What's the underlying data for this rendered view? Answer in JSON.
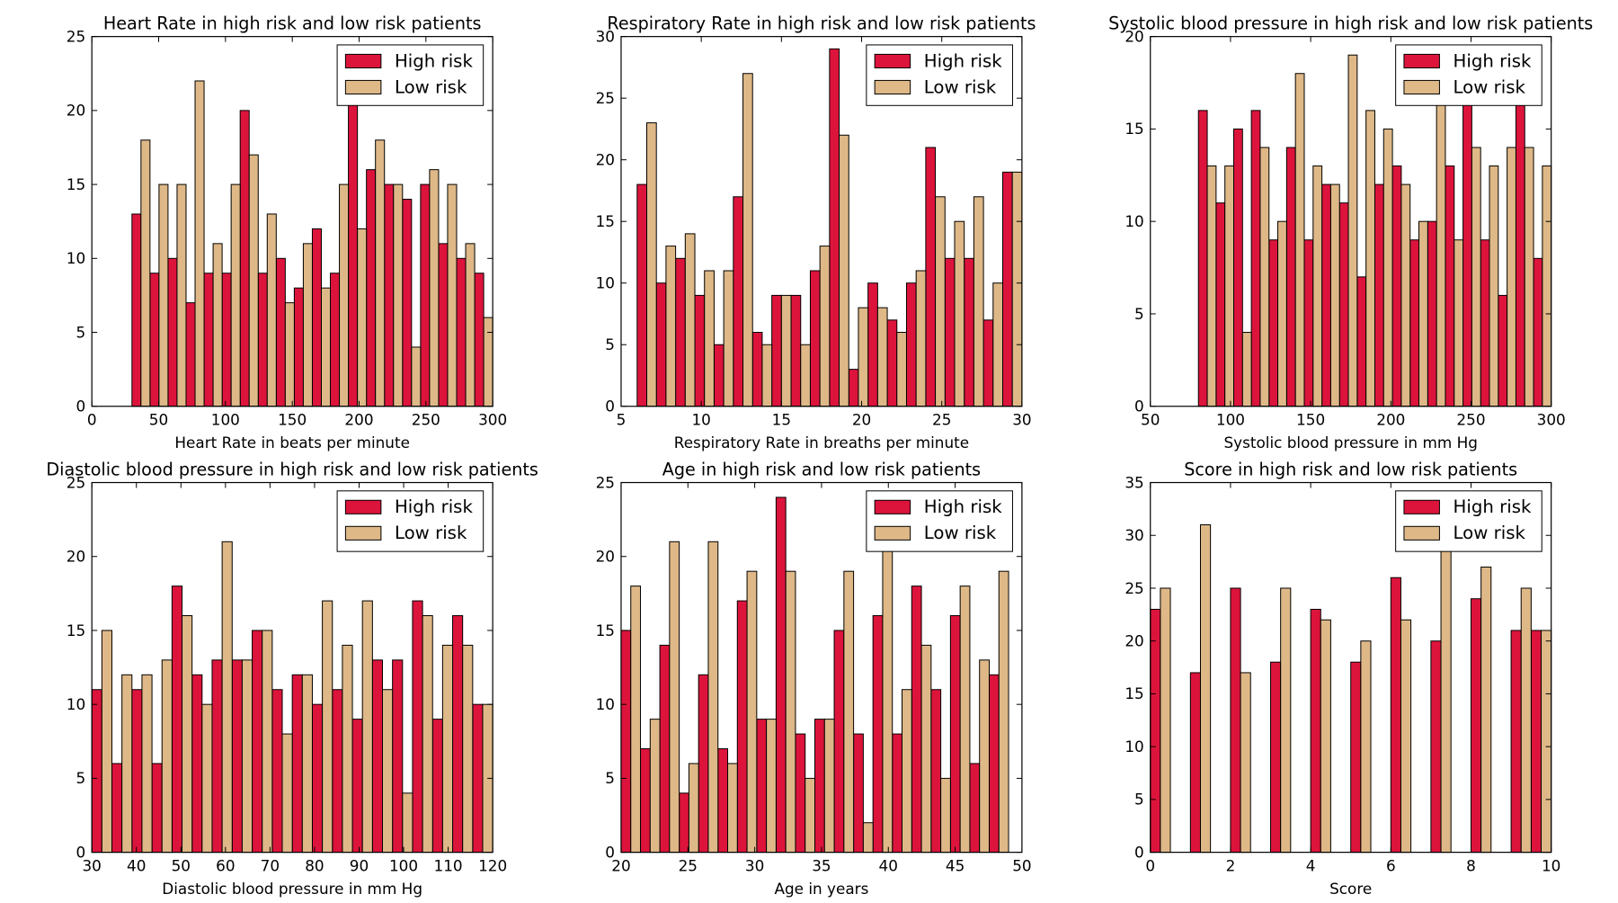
{
  "colors": {
    "high_risk": "#dc143c",
    "low_risk": "#deb887",
    "edge": "#000000"
  },
  "chart_data": [
    {
      "type": "bar",
      "title": "Heart Rate in high risk and low risk patients",
      "xlabel": "Heart Rate in beats per minute",
      "ylabel": "",
      "xlim": [
        0,
        300
      ],
      "ylim": [
        0,
        25
      ],
      "xticks": [
        "0",
        "50",
        "100",
        "150",
        "200",
        "250",
        "300"
      ],
      "yticks": [
        "0",
        "5",
        "10",
        "15",
        "20",
        "25"
      ],
      "bin_start": 30,
      "bin_width": 13.5,
      "legend": "top-right",
      "series": [
        {
          "name": "High risk",
          "values": [
            13,
            9,
            10,
            7,
            9,
            9,
            20,
            9,
            10,
            8,
            12,
            9,
            21,
            16,
            15,
            14,
            15,
            11,
            10,
            9
          ]
        },
        {
          "name": "Low risk",
          "values": [
            18,
            15,
            15,
            22,
            11,
            15,
            17,
            13,
            7,
            11,
            8,
            15,
            12,
            18,
            15,
            4,
            16,
            15,
            11,
            6
          ]
        }
      ]
    },
    {
      "type": "bar",
      "title": "Respiratory Rate in high risk and low risk patients",
      "xlabel": "Respiratory Rate in breaths per minute",
      "ylabel": "",
      "xlim": [
        5,
        30
      ],
      "ylim": [
        0,
        30
      ],
      "xticks": [
        "5",
        "10",
        "15",
        "20",
        "25",
        "30"
      ],
      "yticks": [
        "0",
        "5",
        "10",
        "15",
        "20",
        "25",
        "30"
      ],
      "bin_start": 6,
      "bin_width": 1.2,
      "legend": "top-right",
      "series": [
        {
          "name": "High risk",
          "values": [
            18,
            10,
            12,
            9,
            5,
            17,
            6,
            9,
            9,
            11,
            29,
            3,
            10,
            7,
            10,
            21,
            12,
            12,
            7,
            19
          ]
        },
        {
          "name": "Low risk",
          "values": [
            23,
            13,
            14,
            11,
            11,
            27,
            5,
            9,
            5,
            13,
            22,
            8,
            8,
            6,
            11,
            17,
            15,
            17,
            10,
            19
          ]
        }
      ]
    },
    {
      "type": "bar",
      "title": "Systolic blood pressure in high risk and low risk patients",
      "xlabel": "Systolic blood pressure in mm Hg",
      "ylabel": "",
      "xlim": [
        50,
        300
      ],
      "ylim": [
        0,
        20
      ],
      "xticks": [
        "50",
        "100",
        "150",
        "200",
        "250",
        "300"
      ],
      "yticks": [
        "0",
        "5",
        "10",
        "15",
        "20"
      ],
      "bin_start": 80,
      "bin_width": 11,
      "legend": "top-right",
      "series": [
        {
          "name": "High risk",
          "values": [
            16,
            11,
            15,
            16,
            9,
            14,
            9,
            12,
            11,
            7,
            12,
            13,
            9,
            10,
            13,
            17,
            9,
            6,
            17,
            8
          ]
        },
        {
          "name": "Low risk",
          "values": [
            13,
            13,
            4,
            14,
            10,
            18,
            13,
            12,
            19,
            16,
            15,
            12,
            10,
            17,
            9,
            14,
            13,
            14,
            14,
            13
          ]
        }
      ]
    },
    {
      "type": "bar",
      "title": "Diastolic blood pressure in high risk and low risk patients",
      "xlabel": "Diastolic blood pressure in mm Hg",
      "ylabel": "",
      "xlim": [
        30,
        120
      ],
      "ylim": [
        0,
        25
      ],
      "xticks": [
        "30",
        "40",
        "50",
        "60",
        "70",
        "80",
        "90",
        "100",
        "110",
        "120"
      ],
      "yticks": [
        "0",
        "5",
        "10",
        "15",
        "20",
        "25"
      ],
      "bin_start": 30,
      "bin_width": 4.5,
      "legend": "top-right",
      "series": [
        {
          "name": "High risk",
          "values": [
            11,
            6,
            11,
            6,
            18,
            12,
            13,
            13,
            15,
            11,
            12,
            10,
            11,
            9,
            13,
            13,
            17,
            9,
            16,
            10
          ]
        },
        {
          "name": "Low risk",
          "values": [
            15,
            12,
            12,
            13,
            16,
            10,
            21,
            13,
            15,
            8,
            12,
            17,
            14,
            17,
            11,
            4,
            16,
            14,
            14,
            10
          ]
        }
      ]
    },
    {
      "type": "bar",
      "title": "Age in high risk and low risk patients",
      "xlabel": "Age in years",
      "ylabel": "",
      "xlim": [
        20,
        50
      ],
      "ylim": [
        0,
        25
      ],
      "xticks": [
        "20",
        "25",
        "30",
        "35",
        "40",
        "45",
        "50"
      ],
      "yticks": [
        "0",
        "5",
        "10",
        "15",
        "20",
        "25"
      ],
      "bin_start": 20,
      "bin_width": 1.45,
      "legend": "top-right",
      "series": [
        {
          "name": "High risk",
          "values": [
            15,
            7,
            14,
            4,
            12,
            7,
            17,
            9,
            24,
            8,
            9,
            15,
            8,
            16,
            8,
            18,
            11,
            16,
            6,
            12
          ]
        },
        {
          "name": "Low risk",
          "values": [
            18,
            9,
            21,
            6,
            21,
            6,
            19,
            9,
            19,
            5,
            9,
            19,
            2,
            21,
            11,
            14,
            5,
            18,
            13,
            19
          ]
        }
      ]
    },
    {
      "type": "bar",
      "title": "Score in high risk and low risk patients",
      "xlabel": "Score",
      "ylabel": "",
      "xlim": [
        0,
        10
      ],
      "ylim": [
        0,
        35
      ],
      "xticks": [
        "0",
        "2",
        "4",
        "6",
        "8",
        "10"
      ],
      "yticks": [
        "0",
        "5",
        "10",
        "15",
        "20",
        "25",
        "30",
        "35"
      ],
      "bin_start": 0,
      "bin_width": 0.5,
      "legend": "top-right",
      "series": [
        {
          "name": "High risk",
          "values": [
            23,
            0,
            17,
            0,
            25,
            0,
            18,
            0,
            23,
            0,
            18,
            0,
            26,
            0,
            20,
            0,
            24,
            0,
            21,
            21
          ]
        },
        {
          "name": "Low risk",
          "values": [
            25,
            0,
            31,
            0,
            17,
            0,
            25,
            0,
            22,
            0,
            20,
            0,
            22,
            0,
            30,
            0,
            27,
            0,
            25,
            21
          ]
        }
      ]
    }
  ]
}
